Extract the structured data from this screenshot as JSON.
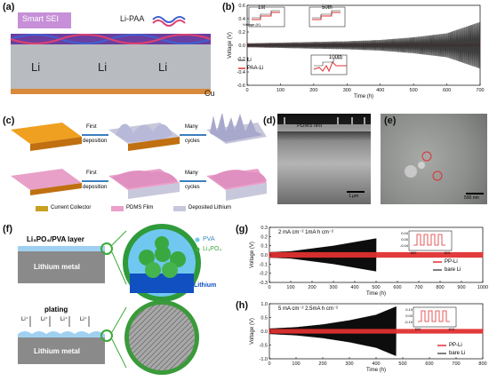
{
  "figure": {
    "panel_labels": [
      "(a)",
      "(b)",
      "(c)",
      "(d)",
      "(e)",
      "(f)",
      "(g)",
      "(h)"
    ],
    "a": {
      "top_label": "Smart SEI",
      "polymer_label": "Li-PAA",
      "li_labels": [
        "Li",
        "Li",
        "Li"
      ],
      "substrate_label": "Cu"
    },
    "b": {
      "ylabel": "Voltage (V)",
      "xlabel": "Time (h)",
      "legend": [
        "Li",
        "PAA-Li"
      ],
      "insets": [
        "1st",
        "50th",
        "100th"
      ],
      "inset_ylabel": "Voltage (V)"
    },
    "c": {
      "top_row": [
        "First",
        "deposition",
        "Many",
        "cycles"
      ],
      "bottom_row": [
        "First",
        "deposition",
        "Many",
        "cycles"
      ],
      "legend": [
        "Current Collector",
        "PDMS Film",
        "Deposited Lithium"
      ]
    },
    "d": {
      "film_label": "PDMS film",
      "scale_bar": "1 μm"
    },
    "e": {
      "scale_bar": "500 nm"
    },
    "f": {
      "top_layer_label": "Li₃PO₄/PVA  layer",
      "metal_label": "Lithium metal",
      "legend": [
        "PVA",
        "Li₃PO₄",
        "Lithium"
      ],
      "plating_label": "plating",
      "ion_labels": [
        "Li⁺",
        "Li⁺",
        "Li⁺",
        "Li⁺"
      ],
      "metal_label_2": "Lithium metal"
    },
    "g": {
      "condition": "2 mA cm⁻² 1mA h cm⁻²",
      "ylabel": "Voltage (V)",
      "xlabel": "Time (h)",
      "legend": [
        "PP-Li",
        "bare Li"
      ]
    },
    "h": {
      "condition": "5 mA cm⁻² 2.5mA h cm⁻²",
      "ylabel": "Voltage (V)",
      "xlabel": "Time (h)",
      "legend": [
        "PP-Li",
        "bare Li"
      ]
    }
  },
  "chart_data": [
    {
      "type": "line",
      "id": "b",
      "xlabel": "Time (h)",
      "ylabel": "Voltage (V)",
      "xlim": [
        0,
        700
      ],
      "ylim": [
        -0.6,
        0.6
      ],
      "xticks": [
        0,
        100,
        200,
        300,
        400,
        500,
        600,
        700
      ],
      "yticks": [
        -0.6,
        -0.4,
        -0.2,
        0.0,
        0.2,
        0.4,
        0.6
      ],
      "series": [
        {
          "name": "Li",
          "color": "#333333",
          "envelope_x": [
            0,
            100,
            200,
            300,
            400,
            500,
            600,
            700
          ],
          "envelope_y": [
            0.03,
            0.04,
            0.05,
            0.06,
            0.08,
            0.12,
            0.18,
            0.35
          ]
        },
        {
          "name": "PAA-Li",
          "color": "#e03030",
          "envelope_x": [
            0,
            700
          ],
          "envelope_y": [
            0.02,
            0.02
          ]
        }
      ]
    },
    {
      "type": "line",
      "id": "g",
      "xlabel": "Time (h)",
      "ylabel": "Voltage (V)",
      "xlim": [
        0,
        1000
      ],
      "ylim": [
        -0.3,
        0.3
      ],
      "xticks": [
        0,
        100,
        200,
        300,
        400,
        500,
        600,
        700,
        800,
        900,
        1000
      ],
      "yticks": [
        -0.3,
        -0.2,
        -0.1,
        0.0,
        0.1,
        0.2,
        0.3
      ],
      "series": [
        {
          "name": "PP-Li",
          "color": "#e03030",
          "envelope_x": [
            0,
            1000
          ],
          "envelope_y": [
            0.03,
            0.03
          ]
        },
        {
          "name": "bare Li",
          "color": "#000000",
          "envelope_x": [
            0,
            100,
            200,
            300,
            400,
            500
          ],
          "envelope_y": [
            0.03,
            0.04,
            0.07,
            0.1,
            0.14,
            0.18
          ]
        }
      ],
      "inset_yticks": [
        0.04,
        0.0,
        -0.04
      ],
      "inset_xticks": [
        800,
        810
      ]
    },
    {
      "type": "line",
      "id": "h",
      "xlabel": "Time (h)",
      "ylabel": "Voltage (V)",
      "xlim": [
        0,
        800
      ],
      "ylim": [
        -1.0,
        1.0
      ],
      "xticks": [
        0,
        100,
        200,
        300,
        400,
        500,
        600,
        700,
        800
      ],
      "yticks": [
        -1.0,
        -0.5,
        0.0,
        0.5,
        1.0
      ],
      "series": [
        {
          "name": "PP-Li",
          "color": "#e03030",
          "envelope_x": [
            0,
            800
          ],
          "envelope_y": [
            0.08,
            0.08
          ]
        },
        {
          "name": "bare Li",
          "color": "#000000",
          "envelope_x": [
            0,
            100,
            200,
            300,
            400,
            475
          ],
          "envelope_y": [
            0.1,
            0.15,
            0.25,
            0.4,
            0.6,
            0.9
          ]
        }
      ],
      "inset_yticks": [
        0.1,
        0.0,
        -0.1
      ],
      "inset_xticks": [
        600,
        610
      ]
    }
  ]
}
